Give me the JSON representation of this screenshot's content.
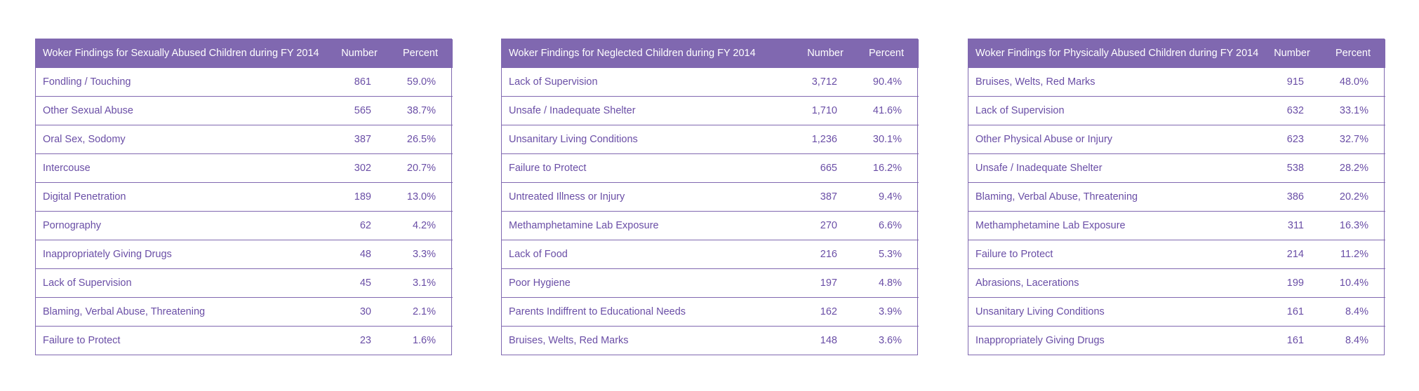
{
  "tables": [
    {
      "title": "Woker Findings for Sexually Abused Children during FY 2014",
      "number_header": "Number",
      "percent_header": "Percent",
      "rows": [
        {
          "label": "Fondling /  Touching",
          "number": "861",
          "percent": "59.0%"
        },
        {
          "label": "Other Sexual Abuse",
          "number": "565",
          "percent": "38.7%"
        },
        {
          "label": "Oral Sex, Sodomy",
          "number": "387",
          "percent": "26.5%"
        },
        {
          "label": "Intercouse",
          "number": "302",
          "percent": "20.7%"
        },
        {
          "label": "Digital Penetration",
          "number": "189",
          "percent": "13.0%"
        },
        {
          "label": "Pornography",
          "number": "62",
          "percent": "4.2%"
        },
        {
          "label": "Inappropriately Giving Drugs",
          "number": "48",
          "percent": "3.3%"
        },
        {
          "label": "Lack of Supervision",
          "number": "45",
          "percent": "3.1%"
        },
        {
          "label": "Blaming, Verbal Abuse, Threatening",
          "number": "30",
          "percent": "2.1%"
        },
        {
          "label": "Failure to Protect",
          "number": "23",
          "percent": "1.6%"
        }
      ]
    },
    {
      "title": "Woker Findings for Neglected Children during FY 2014",
      "number_header": "Number",
      "percent_header": "Percent",
      "rows": [
        {
          "label": "Lack of Supervision",
          "number": "3,712",
          "percent": "90.4%"
        },
        {
          "label": "Unsafe / Inadequate Shelter",
          "number": "1,710",
          "percent": "41.6%"
        },
        {
          "label": "Unsanitary Living Conditions",
          "number": "1,236",
          "percent": "30.1%"
        },
        {
          "label": "Failure to Protect",
          "number": "665",
          "percent": "16.2%"
        },
        {
          "label": "Untreated Illness or Injury",
          "number": "387",
          "percent": "9.4%"
        },
        {
          "label": "Methamphetamine Lab Exposure",
          "number": "270",
          "percent": "6.6%"
        },
        {
          "label": "Lack of Food",
          "number": "216",
          "percent": "5.3%"
        },
        {
          "label": "Poor Hygiene",
          "number": "197",
          "percent": "4.8%"
        },
        {
          "label": "Parents Indiffrent to Educational Needs",
          "number": "162",
          "percent": "3.9%"
        },
        {
          "label": "Bruises, Welts, Red Marks",
          "number": "148",
          "percent": "3.6%"
        }
      ]
    },
    {
      "title": "Woker Findings for Physically Abused Children during FY 2014",
      "number_header": "Number",
      "percent_header": "Percent",
      "rows": [
        {
          "label": "Bruises, Welts, Red Marks",
          "number": "915",
          "percent": "48.0%"
        },
        {
          "label": "Lack of Supervision",
          "number": "632",
          "percent": "33.1%"
        },
        {
          "label": "Other Physical Abuse or Injury",
          "number": "623",
          "percent": "32.7%"
        },
        {
          "label": "Unsafe / Inadequate Shelter",
          "number": "538",
          "percent": "28.2%"
        },
        {
          "label": "Blaming, Verbal Abuse, Threatening",
          "number": "386",
          "percent": "20.2%"
        },
        {
          "label": "Methamphetamine Lab Exposure",
          "number": "311",
          "percent": "16.3%"
        },
        {
          "label": "Failure to Protect",
          "number": "214",
          "percent": "11.2%"
        },
        {
          "label": "Abrasions, Lacerations",
          "number": "199",
          "percent": "10.4%"
        },
        {
          "label": "Unsanitary Living Conditions",
          "number": "161",
          "percent": "8.4%"
        },
        {
          "label": "Inappropriately Giving Drugs",
          "number": "161",
          "percent": "8.4%"
        }
      ]
    }
  ]
}
